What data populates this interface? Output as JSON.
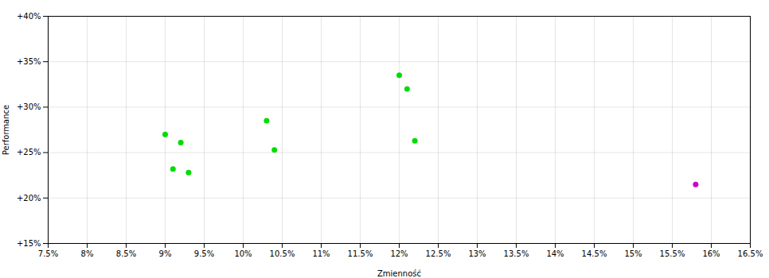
{
  "chart_data": {
    "type": "scatter",
    "xlabel": "Zmienność",
    "ylabel": "Performance",
    "xlim": [
      0.075,
      0.165
    ],
    "ylim": [
      0.15,
      0.4
    ],
    "xticks": [
      {
        "value": 0.075,
        "label": "7.5%"
      },
      {
        "value": 0.08,
        "label": "8%"
      },
      {
        "value": 0.085,
        "label": "8.5%"
      },
      {
        "value": 0.09,
        "label": "9%"
      },
      {
        "value": 0.095,
        "label": "9.5%"
      },
      {
        "value": 0.1,
        "label": "10%"
      },
      {
        "value": 0.105,
        "label": "10.5%"
      },
      {
        "value": 0.11,
        "label": "11%"
      },
      {
        "value": 0.115,
        "label": "11.5%"
      },
      {
        "value": 0.12,
        "label": "12%"
      },
      {
        "value": 0.125,
        "label": "12.5%"
      },
      {
        "value": 0.13,
        "label": "13%"
      },
      {
        "value": 0.135,
        "label": "13.5%"
      },
      {
        "value": 0.14,
        "label": "14%"
      },
      {
        "value": 0.145,
        "label": "14.5%"
      },
      {
        "value": 0.15,
        "label": "15%"
      },
      {
        "value": 0.155,
        "label": "15.5%"
      },
      {
        "value": 0.16,
        "label": "16%"
      },
      {
        "value": 0.165,
        "label": "16.5%"
      }
    ],
    "yticks": [
      {
        "value": 0.15,
        "label": "+15%"
      },
      {
        "value": 0.2,
        "label": "+20%"
      },
      {
        "value": 0.25,
        "label": "+25%"
      },
      {
        "value": 0.3,
        "label": "+30%"
      },
      {
        "value": 0.35,
        "label": "+35%"
      },
      {
        "value": 0.4,
        "label": "+40%"
      }
    ],
    "grid": true,
    "series": [
      {
        "color": "#00dd00",
        "x": [
          0.09,
          0.092,
          0.091,
          0.093,
          0.103,
          0.104,
          0.12,
          0.121,
          0.122
        ],
        "values": [
          0.27,
          0.261,
          0.232,
          0.228,
          0.285,
          0.253,
          0.335,
          0.32,
          0.263
        ]
      },
      {
        "color": "#cc00cc",
        "x": [
          0.158
        ],
        "values": [
          0.215
        ]
      }
    ]
  }
}
